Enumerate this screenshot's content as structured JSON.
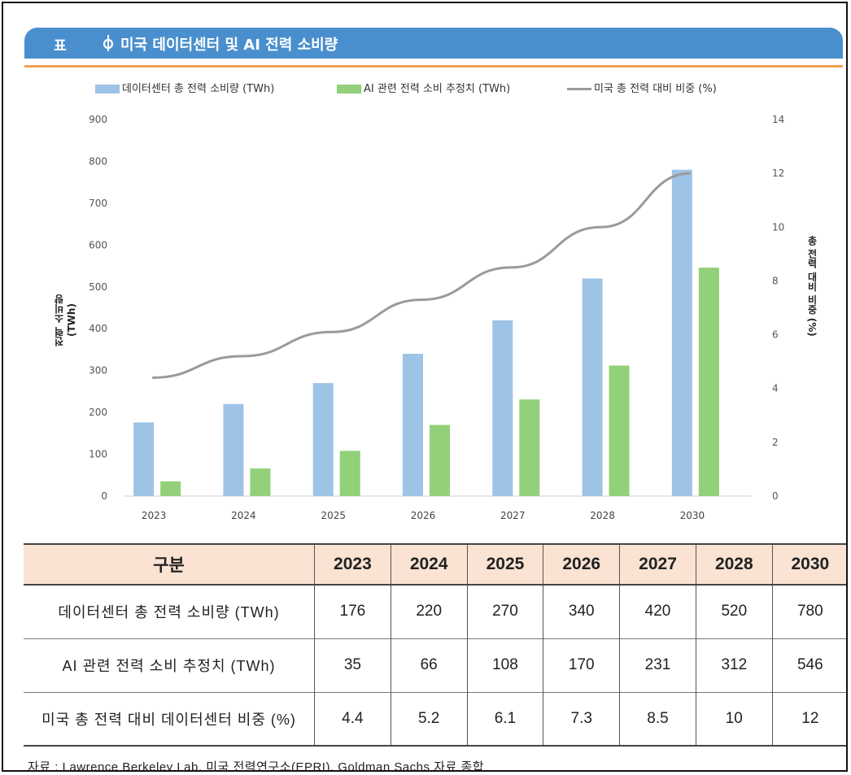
{
  "header": {
    "tag": "표",
    "title": "미국 데이터센터 및 AI 전력 소비량"
  },
  "colors": {
    "title_bar": "#4a8fcd",
    "series_bar1": "#9dc3e6",
    "series_bar2": "#92d07a",
    "series_line": "#9a9a9a",
    "header_row": "#fbe3d3",
    "accent_line": "#f0a050"
  },
  "legend": {
    "bar1": "데이터센터 총 전력 소비량 (TWh)",
    "bar2": "AI 관련 전력 소비 추정치 (TWh)",
    "line": "미국 총 전력 대비 비중 (%)"
  },
  "chart_data": {
    "type": "bar",
    "categories": [
      "2023",
      "2024",
      "2025",
      "2026",
      "2027",
      "2028",
      "2030"
    ],
    "series": [
      {
        "name": "데이터센터 총 전력 소비량 (TWh)",
        "type": "bar",
        "axis": "left",
        "values": [
          176,
          220,
          270,
          340,
          420,
          520,
          780
        ]
      },
      {
        "name": "AI 관련 전력 소비 추정치 (TWh)",
        "type": "bar",
        "axis": "left",
        "values": [
          35,
          66,
          108,
          170,
          231,
          312,
          546
        ]
      },
      {
        "name": "미국 총 전력 대비 비중 (%)",
        "type": "line",
        "axis": "right",
        "values": [
          4.4,
          5.2,
          6.1,
          7.3,
          8.5,
          10,
          12
        ]
      }
    ],
    "ylabel": "전력 소비량 (TWh)",
    "ylabel_right": "총 전력 대비 비중 (%)",
    "ylim": [
      0,
      900
    ],
    "yticks": [
      "0",
      "100",
      "200",
      "300",
      "400",
      "500",
      "600",
      "700",
      "800",
      "900"
    ],
    "ylim_right": [
      0,
      14
    ],
    "yticks_right": [
      "0",
      "2",
      "4",
      "6",
      "8",
      "10",
      "12",
      "14"
    ],
    "legend_position": "top",
    "grid": false
  },
  "table": {
    "header": [
      "구분",
      "2023",
      "2024",
      "2025",
      "2026",
      "2027",
      "2028",
      "2030"
    ],
    "rows": [
      [
        "데이터센터 총 전력 소비량 (TWh)",
        "176",
        "220",
        "270",
        "340",
        "420",
        "520",
        "780"
      ],
      [
        "AI 관련 전력 소비 추정치 (TWh)",
        "35",
        "66",
        "108",
        "170",
        "231",
        "312",
        "546"
      ],
      [
        "미국 총 전력 대비 데이터센터 비중 (%)",
        "4.4",
        "5.2",
        "6.1",
        "7.3",
        "8.5",
        "10",
        "12"
      ]
    ]
  },
  "source": "자료 : Lawrence Berkeley Lab, 미국 전력연구소(EPRI), Goldman Sachs 자료 종합"
}
